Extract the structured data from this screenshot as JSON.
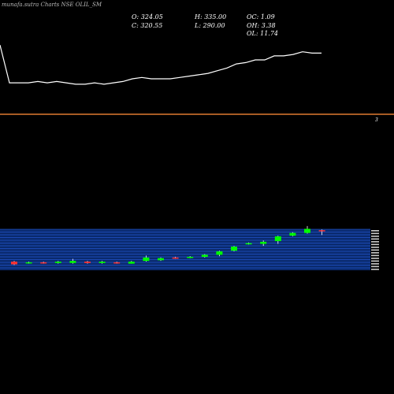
{
  "header": {
    "title": "munafa.sutra Charts NSE OLIL_SM",
    "open": "O: 324.05",
    "high": "H: 335.00",
    "oc": "OC: 1.09",
    "close": "C: 320.55",
    "low": "L: 290.00",
    "oh": "OH: 3.38",
    "ol": "OL: 11.74"
  },
  "axis_mark": "3",
  "colors": {
    "background": "#000000",
    "up": "#00ff00",
    "down": "#ff3333",
    "line": "#ffffff",
    "divider": "#e07a30",
    "band": "#0a2a6e",
    "band_line": "#2255cc"
  },
  "chart_data": {
    "type": "candlestick",
    "title": "munafa.sutra Charts NSE OLIL_SM",
    "line_series": {
      "values": [
        100,
        72,
        72,
        72,
        73,
        72,
        73,
        72,
        71,
        71,
        72,
        71,
        72,
        73,
        75,
        76,
        75,
        75,
        75,
        76,
        77,
        78,
        79,
        81,
        83,
        86,
        87,
        89,
        89,
        92,
        92,
        93,
        95,
        94,
        94
      ],
      "ylim": [
        40,
        110
      ]
    },
    "candles": [
      {
        "o": 100,
        "c": 96,
        "h": 101,
        "l": 95
      },
      {
        "o": 98,
        "c": 99,
        "h": 100,
        "l": 97
      },
      {
        "o": 99,
        "c": 98,
        "h": 100,
        "l": 97
      },
      {
        "o": 98,
        "c": 100,
        "h": 101,
        "l": 97
      },
      {
        "o": 98,
        "c": 101,
        "h": 104,
        "l": 97
      },
      {
        "o": 100,
        "c": 98,
        "h": 101,
        "l": 97
      },
      {
        "o": 98,
        "c": 100,
        "h": 101,
        "l": 97
      },
      {
        "o": 99,
        "c": 98,
        "h": 100,
        "l": 97
      },
      {
        "o": 97,
        "c": 100,
        "h": 101,
        "l": 97
      },
      {
        "o": 101,
        "c": 106,
        "h": 109,
        "l": 100
      },
      {
        "o": 102,
        "c": 105,
        "h": 106,
        "l": 101
      },
      {
        "o": 106,
        "c": 105,
        "h": 107,
        "l": 104
      },
      {
        "o": 106,
        "c": 107,
        "h": 108,
        "l": 105
      },
      {
        "o": 107,
        "c": 110,
        "h": 111,
        "l": 106
      },
      {
        "o": 110,
        "c": 115,
        "h": 116,
        "l": 108
      },
      {
        "o": 116,
        "c": 122,
        "h": 123,
        "l": 115
      },
      {
        "o": 126,
        "c": 127,
        "h": 128,
        "l": 125
      },
      {
        "o": 126,
        "c": 129,
        "h": 131,
        "l": 123
      },
      {
        "o": 130,
        "c": 137,
        "h": 138,
        "l": 126
      },
      {
        "o": 138,
        "c": 142,
        "h": 143,
        "l": 137
      },
      {
        "o": 142,
        "c": 148,
        "h": 152,
        "l": 141
      },
      {
        "o": 146,
        "c": 145,
        "h": 147,
        "l": 139
      }
    ],
    "price_ylim": [
      85,
      160
    ]
  }
}
